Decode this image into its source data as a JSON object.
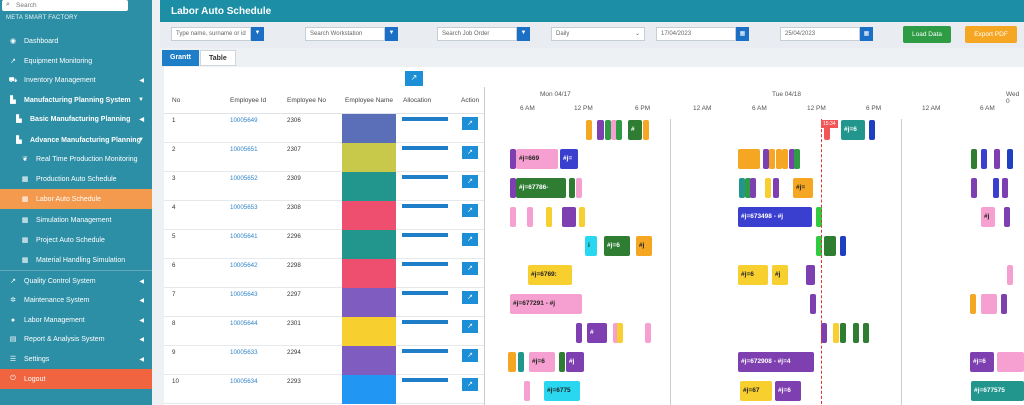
{
  "sidebar": {
    "search_placeholder": "Search",
    "brand": "META SMART FACTORY",
    "items": [
      {
        "label": "Dashboard",
        "icon": "dashboard-icon"
      },
      {
        "label": "Equipment Monitoring",
        "icon": "chart-icon"
      },
      {
        "label": "Inventory Management",
        "icon": "cart-icon"
      },
      {
        "label": "Manufacturing Planning System",
        "icon": "factory-icon"
      },
      {
        "label": "Basic Manufacturing Planning",
        "icon": "factory-icon"
      },
      {
        "label": "Advance Manufacturing Planning",
        "icon": "factory-icon"
      },
      {
        "label": "Real Time Production Monitoring",
        "icon": "leaf-icon"
      },
      {
        "label": "Production Auto Schedule",
        "icon": "calendar-icon"
      },
      {
        "label": "Labor Auto Schedule",
        "icon": "calendar-icon"
      },
      {
        "label": "Simulation Management",
        "icon": "calendar-icon"
      },
      {
        "label": "Project Auto Schedule",
        "icon": "calendar-icon"
      },
      {
        "label": "Material Handling Simulation",
        "icon": "calendar-icon"
      },
      {
        "label": "Quality Control System",
        "icon": "chart-icon"
      },
      {
        "label": "Maintenance System",
        "icon": "wrench-icon"
      },
      {
        "label": "Labor Management",
        "icon": "user-icon"
      },
      {
        "label": "Report & Analysis System",
        "icon": "report-icon"
      },
      {
        "label": "Settings",
        "icon": "gear-icon"
      },
      {
        "label": "Logout",
        "icon": "logout-icon"
      }
    ]
  },
  "header": {
    "title": "Labor Auto Schedule"
  },
  "filters": {
    "employee_placeholder": "Type name, surname or id",
    "workstation_placeholder": "Search Workstation",
    "joborder_placeholder": "Search Job Order",
    "period": "Daily",
    "start_date": "17/04/2023",
    "end_date": "25/04/2023",
    "load_label": "Load Data",
    "export_label": "Export PDF"
  },
  "tabs": [
    "Grantt",
    "Table"
  ],
  "columns": {
    "no": "No",
    "employee_id": "Employee Id",
    "employee_no": "Employee No",
    "employee_name": "Employee Name",
    "allocation": "Allocation",
    "action": "Action"
  },
  "days": [
    "Mon 04/17",
    "Tue 04/18",
    "Wed 0"
  ],
  "hours": [
    "6 AM",
    "12 PM",
    "6 PM",
    "12 AM",
    "6 AM",
    "12 PM",
    "6 PM",
    "12 AM",
    "6 AM"
  ],
  "now_label": "15:34",
  "rows": [
    {
      "no": "1",
      "id": "10005649",
      "emp_no": "2306",
      "color": "#5b6fb8"
    },
    {
      "no": "2",
      "id": "10005651",
      "emp_no": "2307",
      "color": "#c8c94a"
    },
    {
      "no": "3",
      "id": "10005652",
      "emp_no": "2309",
      "color": "#22968d"
    },
    {
      "no": "4",
      "id": "10005653",
      "emp_no": "2308",
      "color": "#ee4f6e"
    },
    {
      "no": "5",
      "id": "10005641",
      "emp_no": "2296",
      "color": "#22968d"
    },
    {
      "no": "6",
      "id": "10005642",
      "emp_no": "2298",
      "color": "#ee4f6e"
    },
    {
      "no": "7",
      "id": "10005643",
      "emp_no": "2297",
      "color": "#7e5cc0"
    },
    {
      "no": "8",
      "id": "10005644",
      "emp_no": "2301",
      "color": "#f7cf2f"
    },
    {
      "no": "9",
      "id": "10005633",
      "emp_no": "2294",
      "color": "#7e5cc0"
    },
    {
      "no": "10",
      "id": "10005634",
      "emp_no": "2293",
      "color": "#2196f3"
    }
  ],
  "gantt_labels": {
    "r1": "#j=6",
    "r2a": "#j=669",
    "r2b": "#j=",
    "r3": "#j=67786-",
    "r4": "#j=673498 - #j",
    "r4b": "#j",
    "r5a": "#j=6",
    "r5b": "#j",
    "r5c": "i",
    "r6a": "#j=6769:",
    "r6b": "#j=6",
    "r6c": "#j",
    "r7": "#j=677291 - #j",
    "r8": "#",
    "r9a": "#j=6",
    "r9b": "#j",
    "r9c": "#j=672908 - #j=4",
    "r9d": "#j=6",
    "r10a": "#j=6775",
    "r10b": "#j=67",
    "r10c": "#j=6",
    "r10d": "#j=677575"
  }
}
